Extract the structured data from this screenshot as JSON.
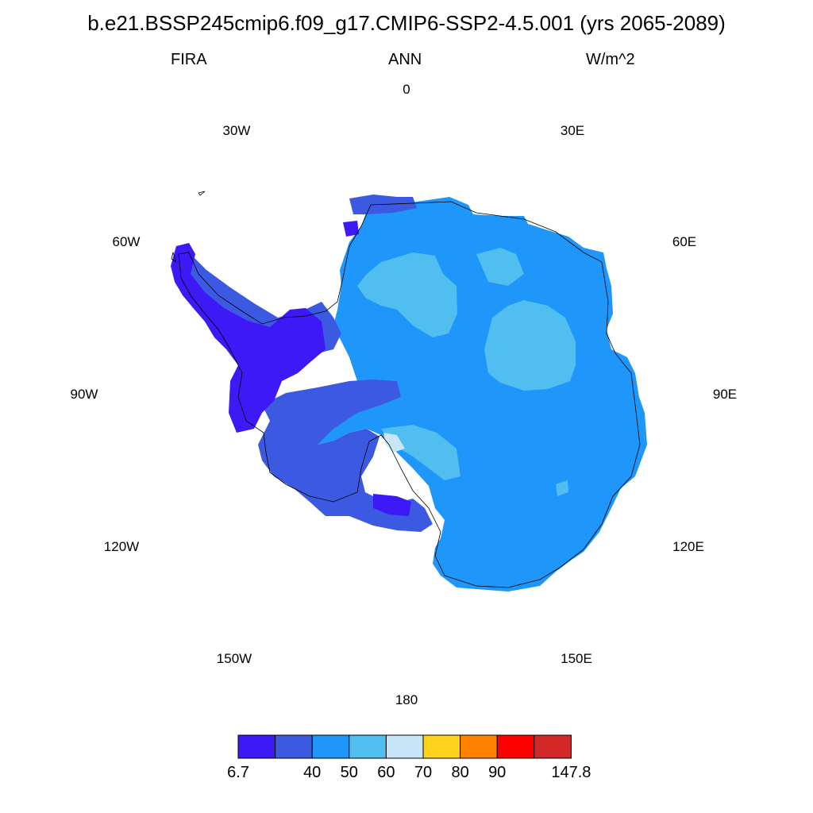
{
  "title": "b.e21.BSSP245cmip6.f09_g17.CMIP6-SSP2-4.5.001 (yrs 2065-2089)",
  "variable": "FIRA",
  "season": "ANN",
  "units": "W/m^2",
  "longitude_labels": [
    "0",
    "30E",
    "60E",
    "90E",
    "120E",
    "150E",
    "180",
    "150W",
    "120W",
    "90W",
    "60W",
    "30W"
  ],
  "colorbar": {
    "colors": [
      "#3c19f5",
      "#3c5ae1",
      "#1e96fa",
      "#50beef",
      "#c8e6f8",
      "#ffd21e",
      "#ff8200",
      "#ff0000",
      "#d22828"
    ],
    "labels": [
      "6.7",
      "40",
      "50",
      "60",
      "70",
      "80",
      "90",
      "147.8"
    ]
  },
  "map_legend": {
    "projection": "south polar stereographic",
    "region": "Antarctica",
    "dominant_class": "40-50 over East Antarctica",
    "west_antarctic_class": "6.7-40 and 40 over Antarctic Peninsula",
    "highlights": [
      "50-60 patches near 30E and 70E plateau",
      "60-70 patch near Ross Ice Shelf"
    ]
  }
}
